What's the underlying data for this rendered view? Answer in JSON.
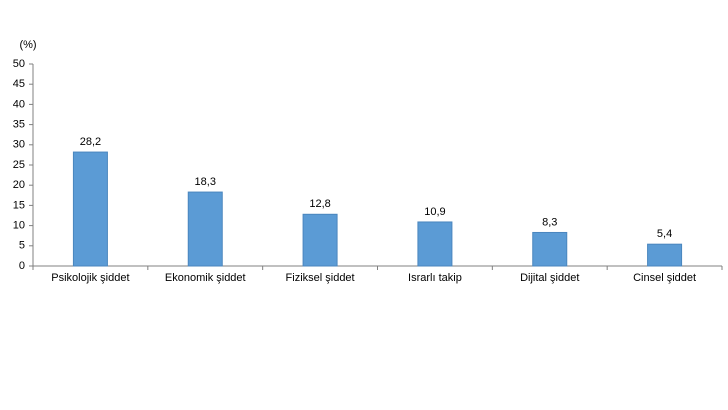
{
  "chart_data": {
    "type": "bar",
    "y_label": "(%)",
    "categories": [
      "Psikolojik şiddet",
      "Ekonomik şiddet",
      "Fiziksel şiddet",
      "Israrlı takip",
      "Dijital şiddet",
      "Cinsel şiddet"
    ],
    "values": [
      28.2,
      18.3,
      12.8,
      10.9,
      8.3,
      5.4
    ],
    "value_labels": [
      "28,2",
      "18,3",
      "12,8",
      "10,9",
      "8,3",
      "5,4"
    ],
    "color": "#5b9bd5",
    "ylim": [
      0,
      50
    ],
    "yticks": [
      0,
      5,
      10,
      15,
      20,
      25,
      30,
      35,
      40,
      45,
      50
    ],
    "grid": false
  }
}
